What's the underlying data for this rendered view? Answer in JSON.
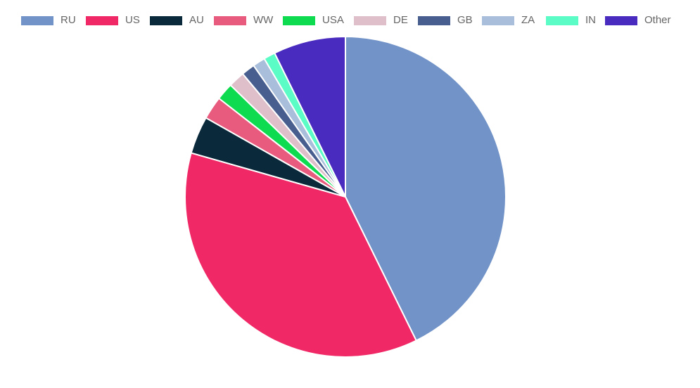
{
  "chart_data": {
    "type": "pie",
    "title": "",
    "legend_position": "top",
    "categories": [
      "RU",
      "US",
      "AU",
      "WW",
      "USA",
      "DE",
      "GB",
      "ZA",
      "IN",
      "Other"
    ],
    "values": [
      44.0,
      37.8,
      3.9,
      2.4,
      1.8,
      1.7,
      1.4,
      1.3,
      1.2,
      7.5
    ],
    "colors": [
      "#7293c8",
      "#f02866",
      "#0a2a3b",
      "#e85a7e",
      "#0edb4f",
      "#dfbfc9",
      "#475e8f",
      "#a8bedb",
      "#5bfcc6",
      "#4a2bbf"
    ],
    "slice_border_color": "#ffffff",
    "start_angle_deg": 0,
    "direction": "clockwise"
  }
}
